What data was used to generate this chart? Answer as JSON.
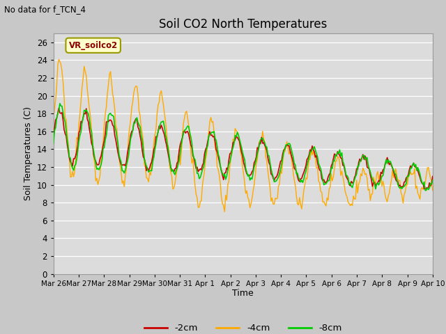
{
  "title": "Soil CO2 North Temperatures",
  "subtitle": "No data for f_TCN_4",
  "xlabel": "Time",
  "ylabel": "Soil Temperatures (C)",
  "ylim": [
    0,
    27
  ],
  "yticks": [
    0,
    2,
    4,
    6,
    8,
    10,
    12,
    14,
    16,
    18,
    20,
    22,
    24,
    26
  ],
  "legend_label": "VR_soilco2",
  "line_labels": [
    "-2cm",
    "-4cm",
    "-8cm"
  ],
  "line_colors": [
    "#cc0000",
    "#ffaa00",
    "#00cc00"
  ],
  "x_tick_labels": [
    "Mar 26",
    "Mar 27",
    "Mar 28",
    "Mar 29",
    "Mar 30",
    "Mar 31",
    "Apr 1",
    "Apr 2",
    "Apr 3",
    "Apr 4",
    "Apr 5",
    "Apr 6",
    "Apr 7",
    "Apr 8",
    "Apr 9",
    "Apr 10"
  ],
  "figsize": [
    6.4,
    4.8
  ],
  "dpi": 100
}
